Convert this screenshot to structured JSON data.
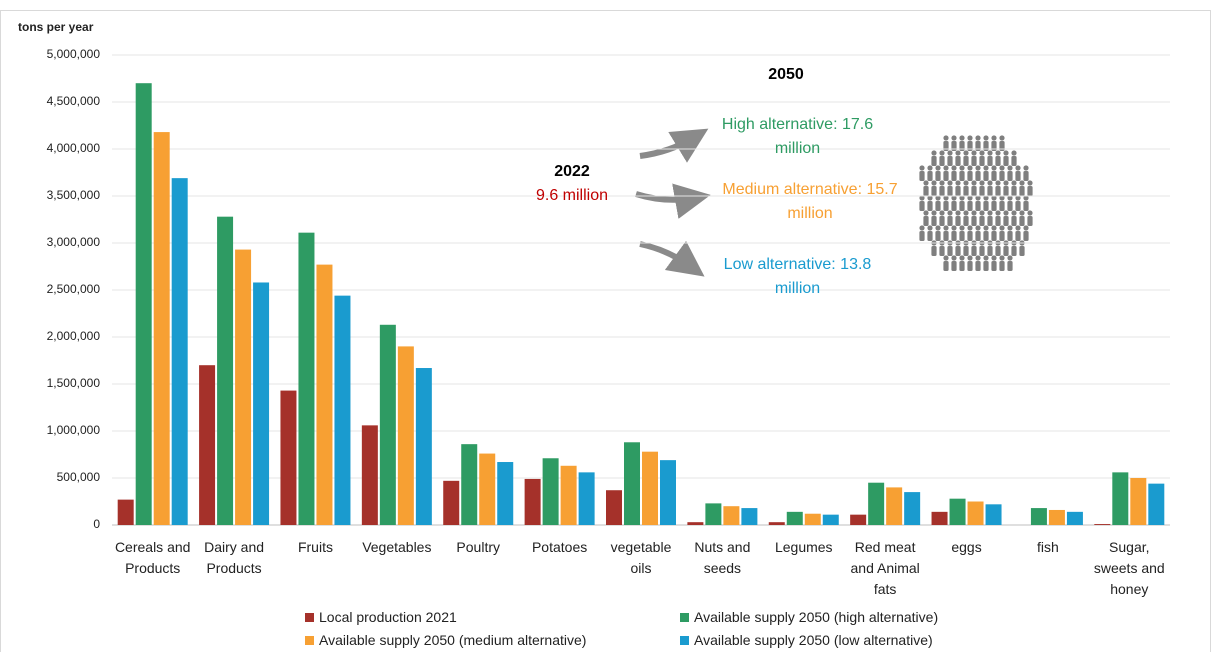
{
  "chart_data": {
    "type": "bar",
    "y_label": "tons per year",
    "categories": [
      "Cereals and Products",
      "Dairy  and Products",
      "Fruits",
      "Vegetables",
      "Poultry",
      "Potatoes",
      "vegetable oils",
      "Nuts and seeds",
      "Legumes",
      "Red meat and Animal fats",
      "eggs",
      "fish",
      "Sugar, sweets and honey"
    ],
    "series": [
      {
        "name": "Local production 2021",
        "color": "#a5312a",
        "values": [
          270000,
          1700000,
          1430000,
          1060000,
          470000,
          490000,
          370000,
          30000,
          30000,
          110000,
          140000,
          0,
          10000
        ]
      },
      {
        "name": "Available supply 2050 (high alternative)",
        "color": "#2e9b63",
        "values": [
          4700000,
          3280000,
          3110000,
          2130000,
          860000,
          710000,
          880000,
          230000,
          140000,
          450000,
          280000,
          180000,
          560000
        ]
      },
      {
        "name": "Available supply 2050 (medium alternative)",
        "color": "#f7a033",
        "values": [
          4180000,
          2930000,
          2770000,
          1900000,
          760000,
          630000,
          780000,
          200000,
          120000,
          400000,
          250000,
          160000,
          500000
        ]
      },
      {
        "name": "Available supply 2050 (low alternative)",
        "color": "#1a9bcf",
        "values": [
          3690000,
          2580000,
          2440000,
          1670000,
          670000,
          560000,
          690000,
          180000,
          110000,
          350000,
          220000,
          140000,
          440000
        ]
      }
    ],
    "ylim": [
      0,
      5000000
    ],
    "yticks": [
      0,
      {
        "value": 500000,
        "label": "500,000"
      },
      {
        "value": 1000000,
        "label": "1,000,000"
      },
      {
        "value": 1500000,
        "label": "1,500,000"
      },
      {
        "value": 2000000,
        "label": "2,000,000"
      },
      {
        "value": 2500000,
        "label": "2,500,000"
      },
      {
        "value": 3000000,
        "label": "3,000,000"
      },
      {
        "value": 3500000,
        "label": "3,500,000"
      },
      {
        "value": 4000000,
        "label": "4,000,000"
      },
      {
        "value": 4500000,
        "label": "4,500,000"
      },
      {
        "value": 5000000,
        "label": "5,000,000"
      }
    ],
    "grid": true,
    "annotations": {
      "year_2050": {
        "text": "2050",
        "color": "#000000"
      },
      "year_2022": {
        "text": "2022",
        "color": "#000000"
      },
      "population_2022": {
        "text": "9.6  million",
        "color": "#c00000"
      },
      "high": {
        "text": "High alternative: 17.6 million",
        "color": "#2e9b63"
      },
      "medium": {
        "text": "Medium alternative: 15.7 million",
        "color": "#f7a033"
      },
      "low": {
        "text": "Low alternative: 13.8 million",
        "color": "#1a9bcf"
      }
    }
  }
}
